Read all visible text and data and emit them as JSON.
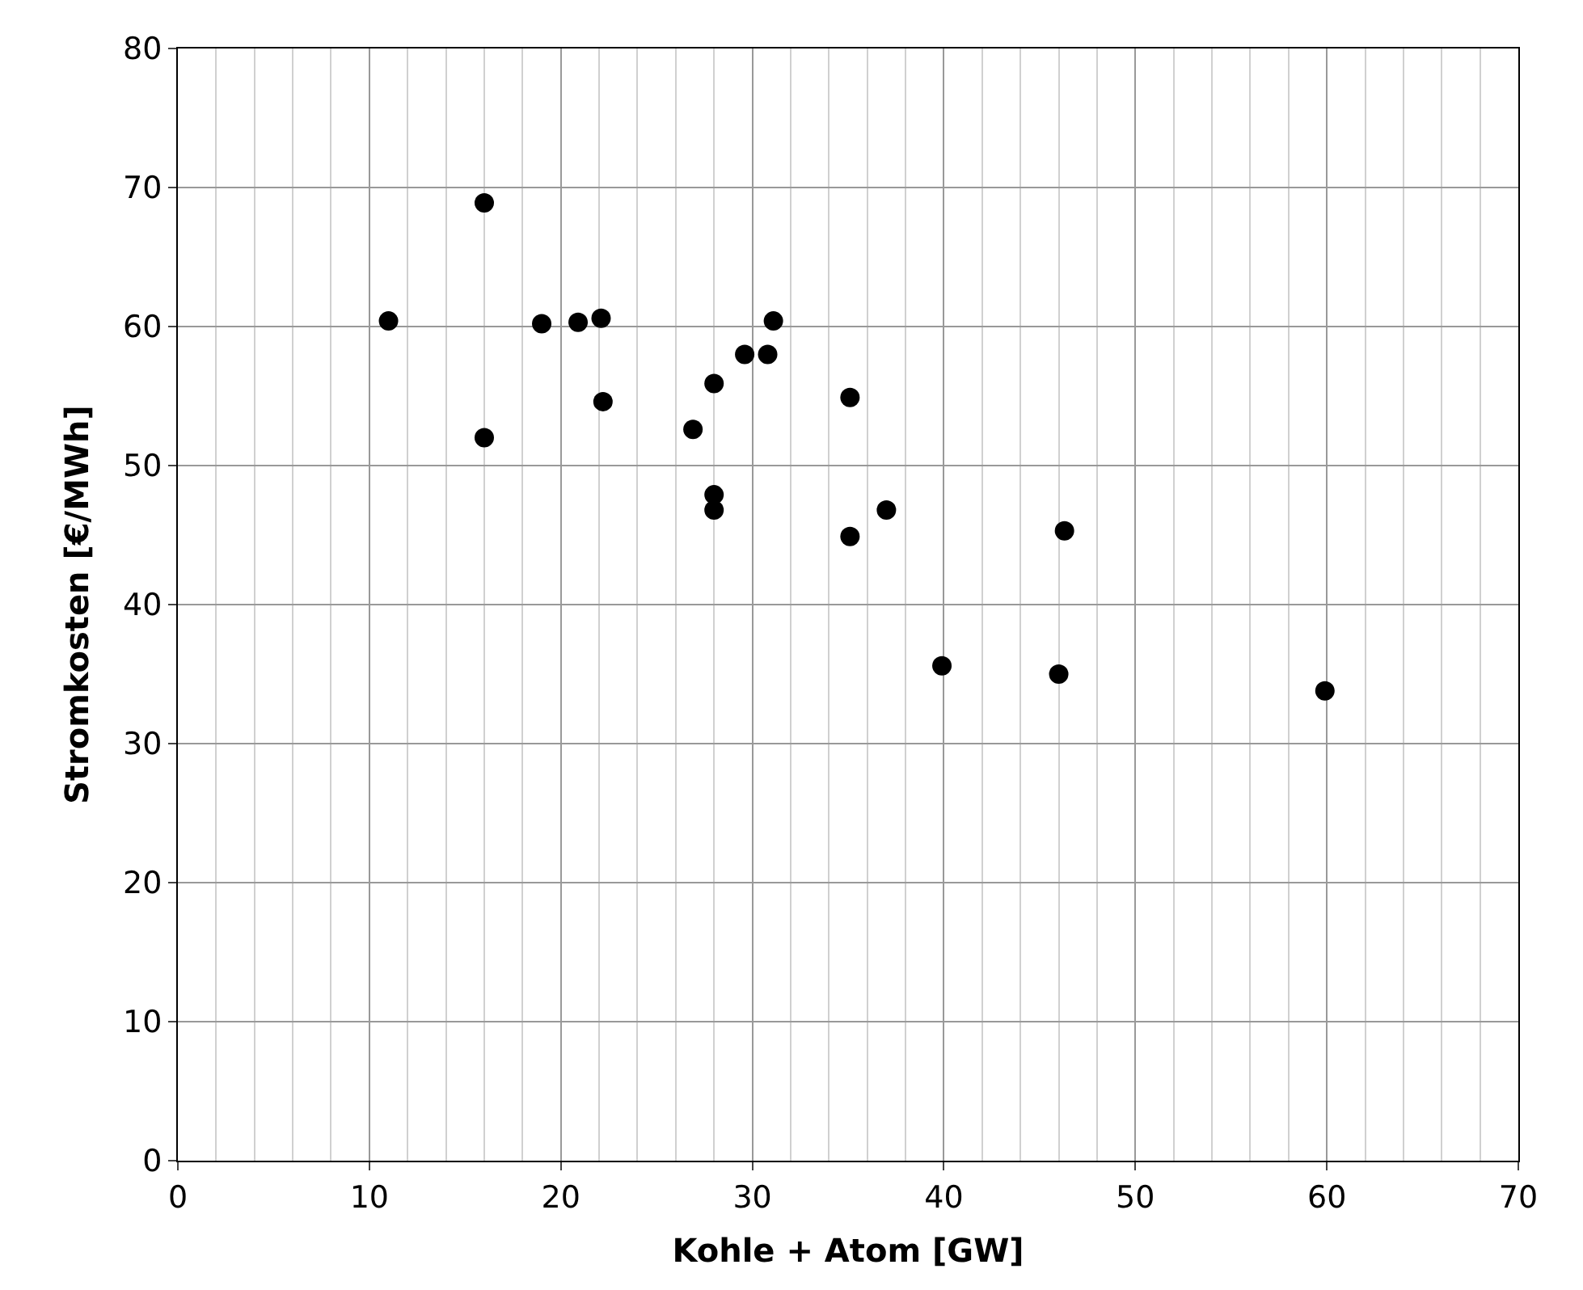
{
  "chart_data": {
    "type": "scatter",
    "xlabel": "Kohle + Atom [GW]",
    "ylabel": "Stromkosten [€/MWh]",
    "x": [
      11,
      16,
      16,
      19,
      20.9,
      22.1,
      22.2,
      26.9,
      28,
      28,
      28,
      29.6,
      30.8,
      31.1,
      35.1,
      35.1,
      37,
      39.9,
      46,
      46.3,
      59.9
    ],
    "series": [
      {
        "color": "#000000",
        "values": [
          60.4,
          68.9,
          52,
          60.2,
          60.3,
          60.6,
          54.6,
          52.6,
          55.9,
          47.9,
          46.8,
          58,
          58,
          60.4,
          54.9,
          44.9,
          46.8,
          35.6,
          35,
          45.3,
          33.8
        ]
      }
    ],
    "xlim": [
      0,
      70
    ],
    "xticks": [
      0,
      10,
      20,
      30,
      40,
      50,
      60,
      70
    ],
    "ylim": [
      0,
      80
    ],
    "yticks": [
      0,
      10,
      20,
      30,
      40,
      50,
      60,
      70,
      80
    ],
    "grid": true,
    "marker": "circle"
  }
}
